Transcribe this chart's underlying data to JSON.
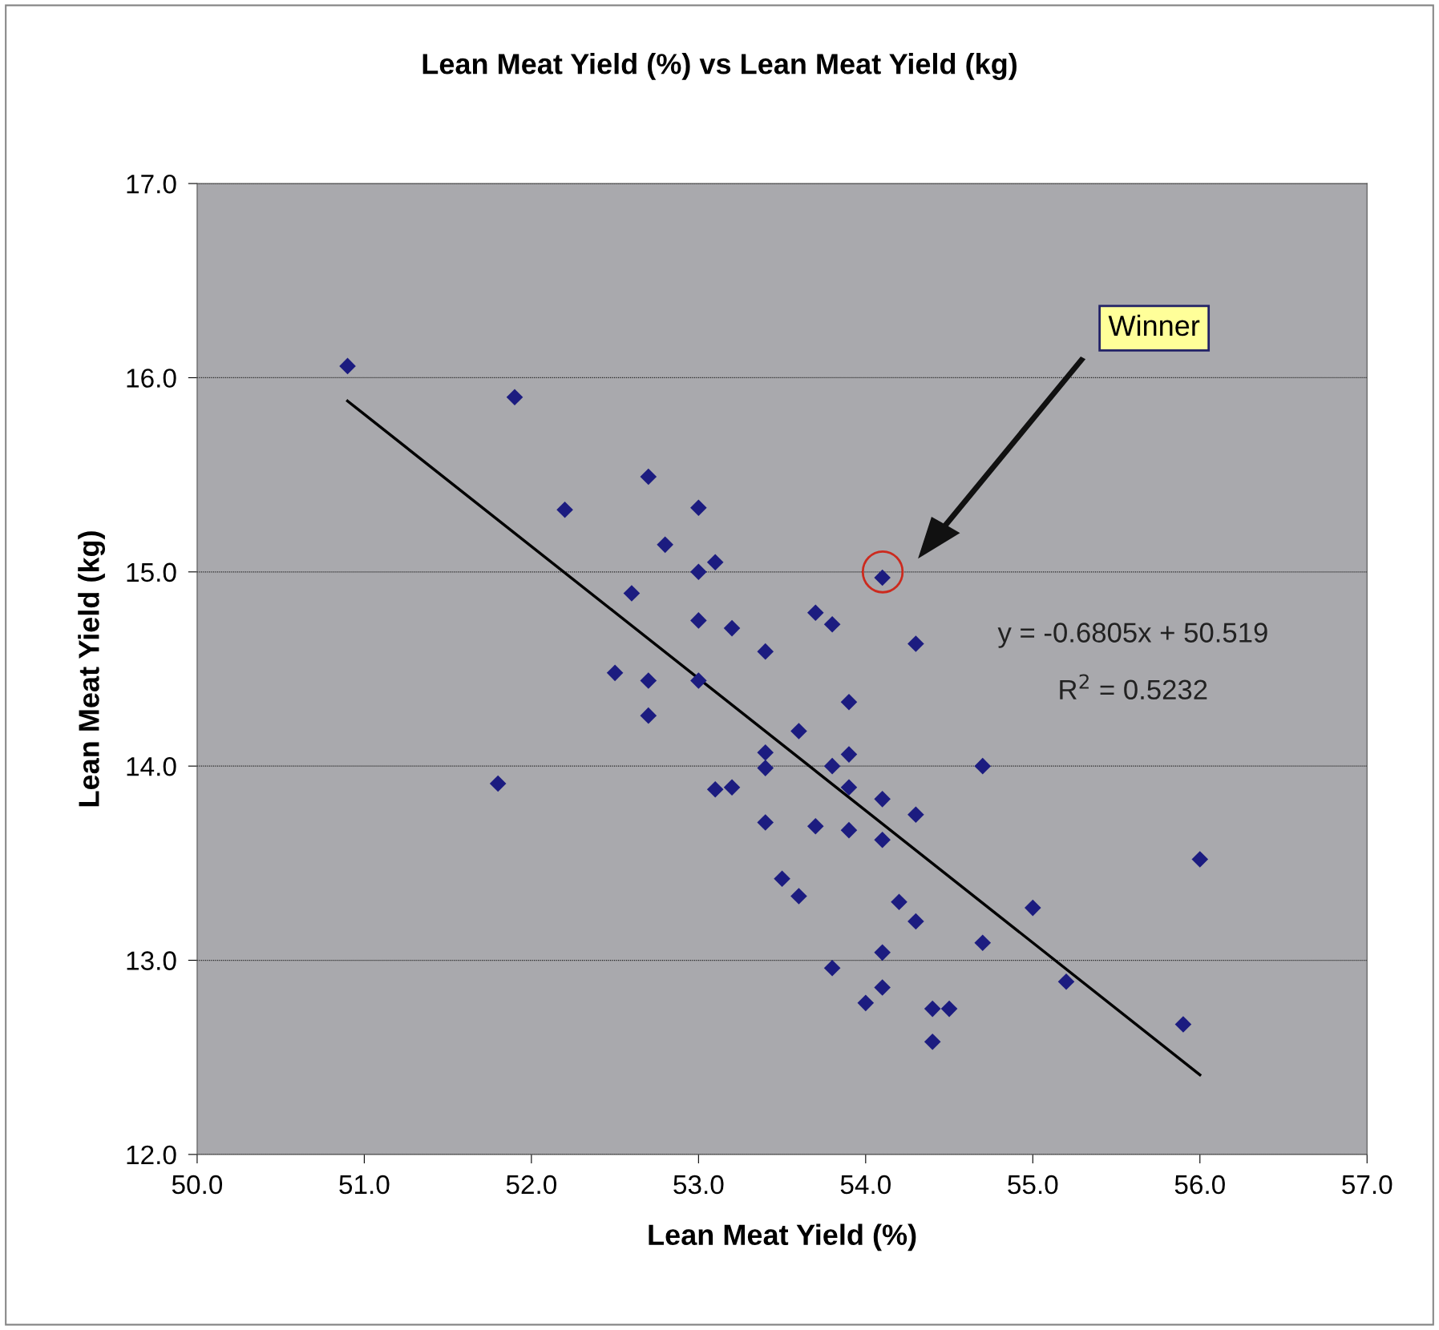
{
  "chart_data": {
    "type": "scatter",
    "title": "Lean Meat Yield (%) vs Lean Meat Yield (kg)",
    "xlabel": "Lean Meat Yield (%)",
    "ylabel": "Lean Meat Yield (kg)",
    "xlim": [
      50.0,
      57.0
    ],
    "xticks": [
      {
        "value": 50,
        "label": "50.0"
      },
      {
        "value": 51,
        "label": "51.0"
      },
      {
        "value": 52,
        "label": "52.0"
      },
      {
        "value": 53,
        "label": "53.0"
      },
      {
        "value": 54,
        "label": "54.0"
      },
      {
        "value": 55,
        "label": "55.0"
      },
      {
        "value": 56,
        "label": "56.0"
      },
      {
        "value": 57,
        "label": "57.0"
      }
    ],
    "ylim": [
      12.0,
      17.0
    ],
    "yticks": [
      {
        "value": 12,
        "label": "12.0"
      },
      {
        "value": 13,
        "label": "13.0"
      },
      {
        "value": 14,
        "label": "14.0"
      },
      {
        "value": 15,
        "label": "15.0"
      },
      {
        "value": 16,
        "label": "16.0"
      },
      {
        "value": 17,
        "label": "17.0"
      }
    ],
    "grid": "y",
    "legend": false,
    "marker": "diamond",
    "series": [
      {
        "color": "#1c1c80",
        "x": [
          50.9,
          51.9,
          52.2,
          51.8,
          52.7,
          52.6,
          52.5,
          52.7,
          52.7,
          52.8,
          53.0,
          53.0,
          53.1,
          53.0,
          53.0,
          53.2,
          53.4,
          53.4,
          53.4,
          53.1,
          53.2,
          53.4,
          53.6,
          53.7,
          53.8,
          53.8,
          53.9,
          53.9,
          53.9,
          53.7,
          53.9,
          53.5,
          53.6,
          54.1,
          54.3,
          54.1,
          54.3,
          54.1,
          54.2,
          54.3,
          53.8,
          54.1,
          54.0,
          54.1,
          54.4,
          54.5,
          54.4,
          54.7,
          54.7,
          55.0,
          55.2,
          55.9,
          56.0
        ],
        "values": [
          16.06,
          15.9,
          15.32,
          13.91,
          15.49,
          14.89,
          14.48,
          14.44,
          14.26,
          15.14,
          15.33,
          15.0,
          15.05,
          14.75,
          14.44,
          14.71,
          14.59,
          14.07,
          13.99,
          13.88,
          13.89,
          13.71,
          14.18,
          14.79,
          14.73,
          14.0,
          14.06,
          14.33,
          13.89,
          13.69,
          13.67,
          13.42,
          13.33,
          14.97,
          14.63,
          13.83,
          13.75,
          13.62,
          13.3,
          13.2,
          12.96,
          13.04,
          12.78,
          12.86,
          12.75,
          12.75,
          12.58,
          14.0,
          13.09,
          13.27,
          12.89,
          12.67,
          13.52
        ]
      },
      {
        "type": "line",
        "color": "#000000",
        "marker": "none",
        "line_style": "solid",
        "x": [
          50.9,
          56.0
        ],
        "values": [
          15.88,
          12.41
        ]
      }
    ],
    "annotations": [
      "Winner",
      "y = -0.6805x + 50.519",
      "R$^{2}$ = 0.5232"
    ]
  }
}
